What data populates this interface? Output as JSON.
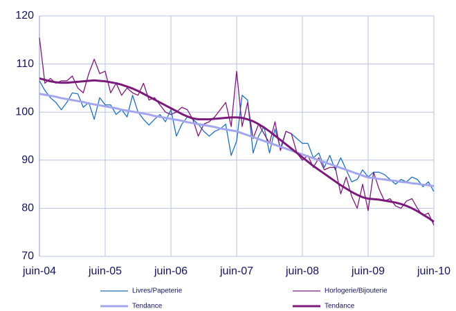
{
  "chart_data": {
    "type": "line",
    "categories": [
      "juin-04",
      null,
      null,
      null,
      null,
      null,
      null,
      null,
      null,
      null,
      null,
      null,
      "juin-05",
      null,
      null,
      null,
      null,
      null,
      null,
      null,
      null,
      null,
      null,
      null,
      "juin-06",
      null,
      null,
      null,
      null,
      null,
      null,
      null,
      null,
      null,
      null,
      null,
      "juin-07",
      null,
      null,
      null,
      null,
      null,
      null,
      null,
      null,
      null,
      null,
      null,
      "juin-08",
      null,
      null,
      null,
      null,
      null,
      null,
      null,
      null,
      null,
      null,
      null,
      "juin-09",
      null,
      null,
      null,
      null,
      null,
      null,
      null,
      null,
      null,
      null,
      null,
      "juin-10"
    ],
    "ylim": [
      70,
      120
    ],
    "yticks": [
      70,
      80,
      90,
      100,
      110,
      120
    ],
    "grid": true,
    "series": [
      {
        "name": "Livres/Papeterie",
        "color": "#1f6fb8",
        "width": 1.3,
        "values": [
          106.5,
          104.5,
          103,
          102,
          100.5,
          102,
          104,
          103.8,
          101,
          102,
          98.5,
          103,
          101.5,
          101.5,
          99.5,
          100.5,
          99,
          103.5,
          100,
          98.5,
          97.3,
          98.5,
          99.5,
          98,
          100.5,
          95,
          97.5,
          99,
          98.5,
          97.5,
          96,
          95,
          96,
          96.5,
          97.5,
          91,
          94,
          103.5,
          102.5,
          91.5,
          95,
          97,
          91.5,
          96.5,
          92.5,
          96,
          95.5,
          94.5,
          93.5,
          93.5,
          90.5,
          91.5,
          88.5,
          91,
          88,
          90.5,
          88,
          85.5,
          86,
          88,
          86.5,
          87.5,
          87.5,
          87,
          86,
          85,
          86,
          85.5,
          86.5,
          86,
          84.5,
          85.5,
          83.5
        ]
      },
      {
        "name": "Horlogerie/Bijouterie",
        "color": "#7a1a7a",
        "width": 1.3,
        "values": [
          115.5,
          106,
          107,
          106,
          106.5,
          106.5,
          107.5,
          105,
          104,
          108,
          111,
          108,
          108.5,
          104,
          106,
          103.5,
          105,
          104,
          103.5,
          106,
          102.5,
          103,
          101.5,
          100,
          99.5,
          100,
          101,
          100.5,
          98.5,
          95,
          97.5,
          98,
          99,
          100.5,
          102,
          97,
          108.5,
          97,
          102,
          94.5,
          97.5,
          95.5,
          93.5,
          98,
          92,
          96,
          95.5,
          91.5,
          90,
          91,
          88.5,
          90.5,
          88,
          88.5,
          88.5,
          83,
          86.5,
          82.5,
          80,
          85,
          79.5,
          87.5,
          84,
          81.5,
          82,
          80.5,
          80,
          81.5,
          82,
          80,
          78.5,
          79,
          76.5
        ]
      },
      {
        "name": "Tendance",
        "color": "#a3a6ec",
        "width": 3,
        "values": [
          103.8,
          103.6,
          103.4,
          103.2,
          102.9,
          102.7,
          102.5,
          102.3,
          102.1,
          101.8,
          101.6,
          101.4,
          101.2,
          101.0,
          100.8,
          100.5,
          100.3,
          100.1,
          99.9,
          99.7,
          99.5,
          99.2,
          99.0,
          98.8,
          98.6,
          98.4,
          98.2,
          97.9,
          97.7,
          97.5,
          97.3,
          97.1,
          96.9,
          96.6,
          96.4,
          96.2,
          96.0,
          95.6,
          95.2,
          94.8,
          94.4,
          94.0,
          93.6,
          93.2,
          92.8,
          92.4,
          92.0,
          91.6,
          91.2,
          90.8,
          90.4,
          90.0,
          89.6,
          89.2,
          88.8,
          88.4,
          88.0,
          87.6,
          87.2,
          86.8,
          86.4,
          86.3,
          86.1,
          86.0,
          85.8,
          85.7,
          85.5,
          85.4,
          85.2,
          85.1,
          84.9,
          84.8,
          84.6
        ]
      },
      {
        "name": "Tendance",
        "color": "#7a1a7a",
        "width": 3,
        "values": [
          107,
          106.7,
          106.4,
          106.2,
          106.1,
          106.1,
          106.2,
          106.3,
          106.4,
          106.5,
          106.6,
          106.5,
          106.4,
          106.2,
          106,
          105.7,
          105.3,
          104.9,
          104.4,
          103.8,
          103.2,
          102.6,
          102,
          101.4,
          100.8,
          100.2,
          99.6,
          99.1,
          98.7,
          98.5,
          98.5,
          98.5,
          98.6,
          98.7,
          98.8,
          98.9,
          98.9,
          98.8,
          98.5,
          98.1,
          97.5,
          96.8,
          96,
          95.1,
          94.2,
          93.3,
          92.4,
          91.5,
          90.6,
          89.7,
          88.8,
          88,
          87.2,
          86.4,
          85.6,
          84.8,
          84.1,
          83.4,
          82.8,
          82.3,
          82,
          81.9,
          81.8,
          81.6,
          81.4,
          81.2,
          80.9,
          80.5,
          80,
          79.4,
          78.7,
          78,
          77.2
        ]
      }
    ]
  }
}
